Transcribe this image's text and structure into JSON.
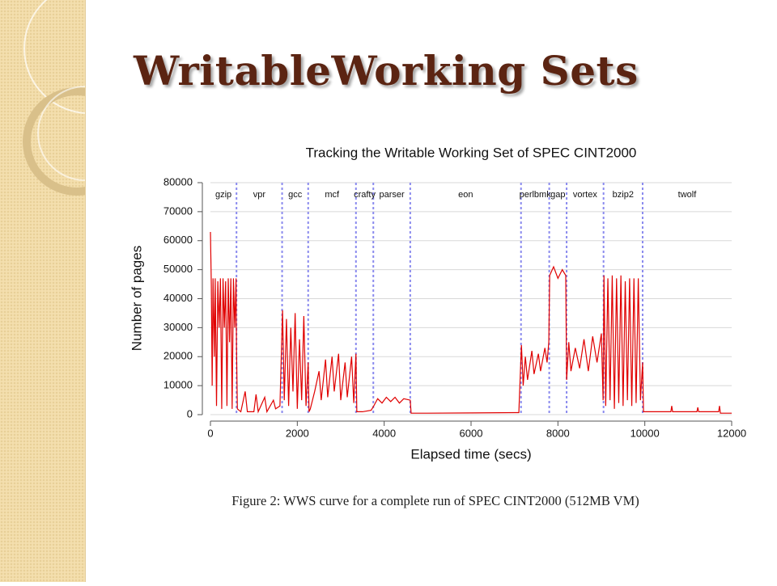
{
  "slide": {
    "title": "WritableWorking Sets",
    "caption": "Figure 2: WWS curve for a complete run of SPEC CINT2000 (512MB VM)"
  },
  "chart_data": {
    "type": "line",
    "title": "Tracking the Writable Working Set of SPEC CINT2000",
    "x_label": "Elapsed time (secs)",
    "y_label": "Number of pages",
    "xlim": [
      0,
      12000
    ],
    "xticks": [
      0,
      2000,
      4000,
      6000,
      8000,
      10000,
      12000
    ],
    "ylim": [
      0,
      80000
    ],
    "yticks": [
      0,
      10000,
      20000,
      30000,
      40000,
      50000,
      60000,
      70000,
      80000
    ],
    "grid": true,
    "phases": [
      "gzip",
      "vpr",
      "gcc",
      "mcf",
      "crafty",
      "parser",
      "eon",
      "perlbmk",
      "gap",
      "vortex",
      "bzip2",
      "twolf"
    ],
    "phase_boundaries": [
      600,
      1650,
      2250,
      3350,
      3750,
      4600,
      7150,
      7800,
      8200,
      9050,
      9950
    ],
    "boundary_color": "#8a8aee",
    "x": [
      0,
      20,
      40,
      60,
      90,
      110,
      140,
      170,
      200,
      230,
      260,
      290,
      320,
      350,
      380,
      410,
      440,
      470,
      500,
      530,
      560,
      590,
      600,
      620,
      700,
      800,
      850,
      1000,
      1050,
      1100,
      1250,
      1300,
      1450,
      1500,
      1600,
      1660,
      1700,
      1750,
      1800,
      1850,
      1900,
      1950,
      2000,
      2050,
      2100,
      2150,
      2200,
      2250,
      2270,
      2300,
      2400,
      2500,
      2550,
      2650,
      2700,
      2800,
      2850,
      2950,
      3000,
      3100,
      3150,
      3250,
      3300,
      3350,
      3370,
      3500,
      3700,
      3760,
      3850,
      3950,
      4050,
      4150,
      4250,
      4350,
      4450,
      4600,
      4620,
      5000,
      6000,
      7100,
      7160,
      7200,
      7250,
      7300,
      7400,
      7450,
      7550,
      7600,
      7700,
      7750,
      7790,
      7810,
      7900,
      8000,
      8100,
      8180,
      8200,
      8250,
      8300,
      8400,
      8500,
      8600,
      8700,
      8800,
      8900,
      9000,
      9040,
      9060,
      9100,
      9150,
      9200,
      9250,
      9300,
      9350,
      9400,
      9450,
      9500,
      9550,
      9600,
      9650,
      9700,
      9750,
      9800,
      9850,
      9900,
      9950,
      9970,
      10000,
      10600,
      10620,
      10640,
      11200,
      11220,
      11240,
      11700,
      11720,
      11740,
      12000
    ],
    "series": [
      {
        "color": "#e00000",
        "values": [
          63000,
          45000,
          10000,
          47000,
          20000,
          47000,
          3000,
          46000,
          30000,
          47000,
          2000,
          47000,
          30000,
          46000,
          3000,
          47000,
          25000,
          47000,
          2000,
          47000,
          30000,
          47000,
          23000,
          2000,
          1000,
          8000,
          1000,
          1000,
          7000,
          1000,
          6000,
          1000,
          5000,
          2000,
          3000,
          36000,
          5000,
          33000,
          3000,
          30000,
          8000,
          35000,
          2000,
          26000,
          5000,
          34000,
          3000,
          18000,
          1000,
          2000,
          8000,
          15000,
          5000,
          19000,
          6000,
          20000,
          8000,
          21000,
          5000,
          18000,
          6000,
          20000,
          4000,
          21000,
          1000,
          1000,
          1500,
          3000,
          5500,
          4000,
          6000,
          4500,
          6000,
          4000,
          5500,
          5000,
          500,
          500,
          600,
          700,
          24000,
          10000,
          20000,
          12000,
          22000,
          14000,
          21000,
          15000,
          23000,
          18000,
          25000,
          48000,
          51000,
          47000,
          50000,
          48000,
          12000,
          25000,
          15000,
          23000,
          16000,
          26000,
          15000,
          27000,
          18000,
          28000,
          5000,
          48000,
          3000,
          47000,
          5000,
          48000,
          2000,
          47000,
          4000,
          48000,
          3000,
          46000,
          5000,
          47000,
          3000,
          47000,
          4000,
          47000,
          5000,
          18000,
          1000,
          1000,
          1000,
          3000,
          1000,
          1000,
          2500,
          1000,
          1000,
          3000,
          500,
          500
        ]
      }
    ]
  }
}
